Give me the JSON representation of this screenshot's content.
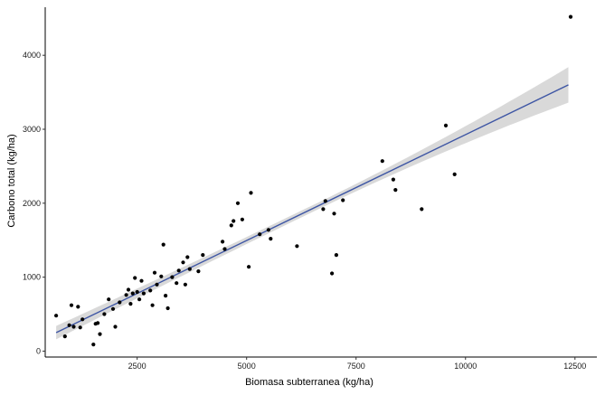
{
  "chart_data": {
    "type": "scatter",
    "title": "",
    "xlabel": "Biomasa subterranea (kg/ha)",
    "ylabel": "Carbono total (kg/ha)",
    "xlim": [
      400,
      13000
    ],
    "ylim": [
      -80,
      4650
    ],
    "xticks": [
      2500,
      5000,
      7500,
      10000,
      12500
    ],
    "yticks": [
      0,
      1000,
      2000,
      3000,
      4000
    ],
    "grid": false,
    "point_color": "#000000",
    "fit": {
      "type": "linear",
      "x_start": 650,
      "x_end": 12350,
      "y_start": 250,
      "y_end": 3600,
      "line_color": "#3d55a4",
      "band_color": "#cccccc",
      "band_halfwidth_start": 90,
      "band_halfwidth_mid": 45,
      "band_halfwidth_end": 240
    },
    "points": [
      [
        650,
        480
      ],
      [
        850,
        200
      ],
      [
        950,
        350
      ],
      [
        1000,
        620
      ],
      [
        1050,
        330
      ],
      [
        1150,
        600
      ],
      [
        1200,
        320
      ],
      [
        1250,
        430
      ],
      [
        1500,
        90
      ],
      [
        1550,
        370
      ],
      [
        1600,
        380
      ],
      [
        1650,
        230
      ],
      [
        1750,
        500
      ],
      [
        1850,
        700
      ],
      [
        1950,
        570
      ],
      [
        2000,
        330
      ],
      [
        2100,
        660
      ],
      [
        2250,
        760
      ],
      [
        2300,
        830
      ],
      [
        2350,
        640
      ],
      [
        2400,
        780
      ],
      [
        2450,
        990
      ],
      [
        2500,
        800
      ],
      [
        2550,
        700
      ],
      [
        2600,
        950
      ],
      [
        2650,
        780
      ],
      [
        2800,
        820
      ],
      [
        2850,
        620
      ],
      [
        2900,
        1060
      ],
      [
        2950,
        900
      ],
      [
        3050,
        1010
      ],
      [
        3100,
        1440
      ],
      [
        3150,
        750
      ],
      [
        3200,
        580
      ],
      [
        3300,
        1000
      ],
      [
        3400,
        920
      ],
      [
        3450,
        1090
      ],
      [
        3550,
        1200
      ],
      [
        3600,
        900
      ],
      [
        3650,
        1270
      ],
      [
        3700,
        1110
      ],
      [
        3900,
        1080
      ],
      [
        4000,
        1300
      ],
      [
        4450,
        1480
      ],
      [
        4500,
        1380
      ],
      [
        4650,
        1700
      ],
      [
        4700,
        1760
      ],
      [
        4800,
        2000
      ],
      [
        4900,
        1780
      ],
      [
        5050,
        1140
      ],
      [
        5100,
        2140
      ],
      [
        5300,
        1580
      ],
      [
        5500,
        1640
      ],
      [
        5550,
        1520
      ],
      [
        6150,
        1420
      ],
      [
        6750,
        1920
      ],
      [
        6800,
        2030
      ],
      [
        6950,
        1050
      ],
      [
        7000,
        1860
      ],
      [
        7050,
        1300
      ],
      [
        7200,
        2040
      ],
      [
        8100,
        2570
      ],
      [
        8350,
        2320
      ],
      [
        8400,
        2180
      ],
      [
        9000,
        1920
      ],
      [
        9550,
        3050
      ],
      [
        9750,
        2390
      ],
      [
        12400,
        4520
      ]
    ]
  }
}
